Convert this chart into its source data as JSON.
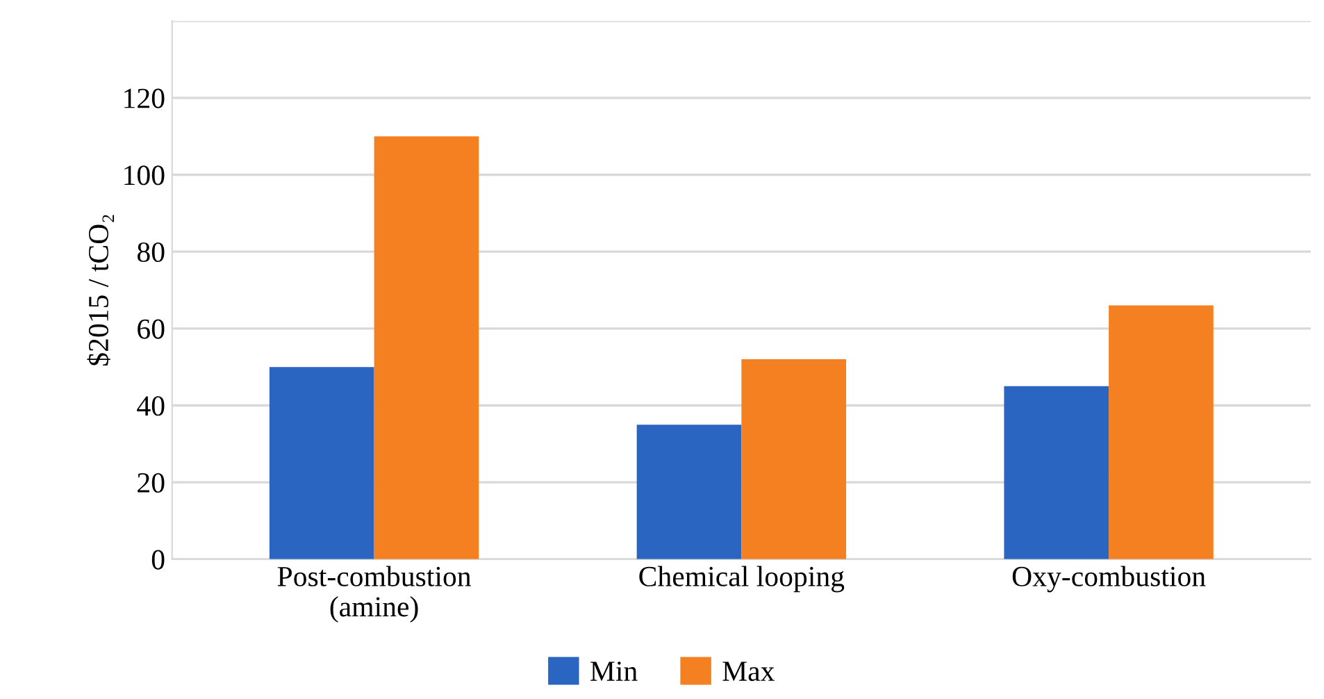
{
  "chart_data": {
    "type": "bar",
    "ylabel": "$2015 / tCO₂",
    "categories": [
      "Post-combustion\n(amine)",
      "Chemical looping",
      "Oxy-combustion"
    ],
    "series": [
      {
        "name": "Min",
        "color": "#2a66c1",
        "values": [
          50,
          35,
          45
        ]
      },
      {
        "name": "Max",
        "color": "#f58022",
        "values": [
          110,
          52,
          66
        ]
      }
    ],
    "ylim": [
      0,
      140
    ],
    "yticks": [
      0,
      20,
      40,
      60,
      80,
      100,
      120,
      {
        "value": 140,
        "label": null
      }
    ],
    "grid": "y",
    "legend": "bottom"
  }
}
